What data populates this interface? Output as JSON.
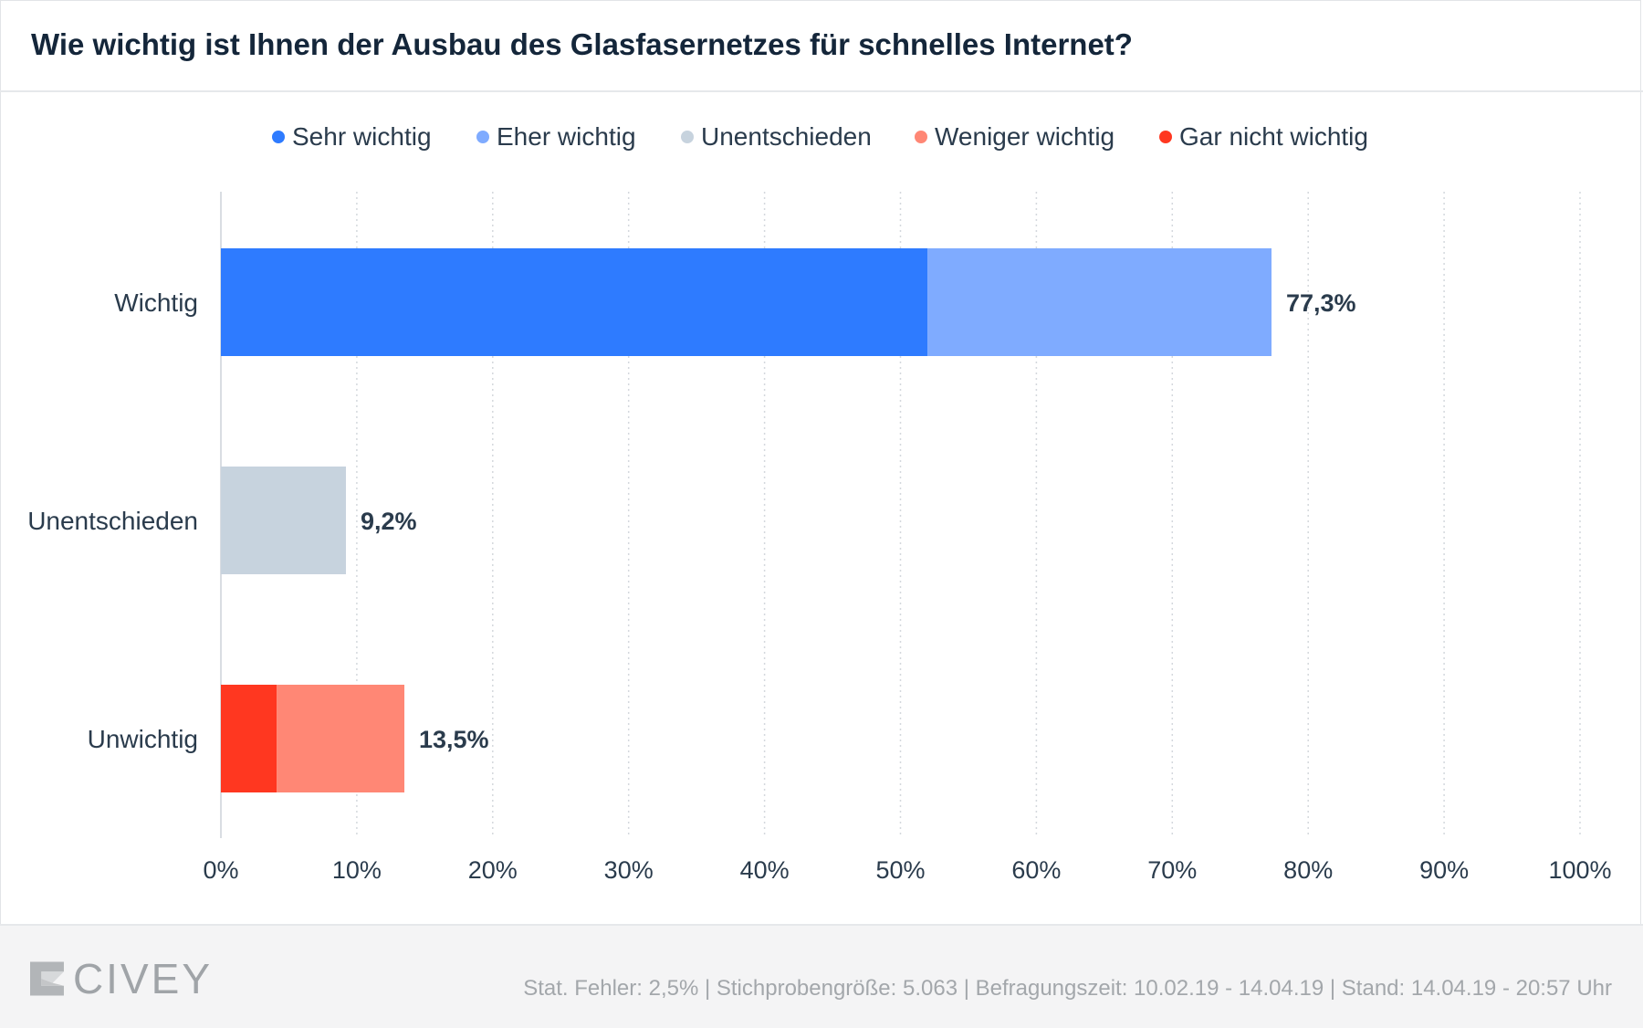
{
  "title": "Wie wichtig ist Ihnen der Ausbau des Glasfasernetzes für schnelles Internet?",
  "legend": [
    {
      "label": "Sehr wichtig",
      "color": "#2e7bff"
    },
    {
      "label": "Eher wichtig",
      "color": "#7fabff"
    },
    {
      "label": "Unentschieden",
      "color": "#c7d3de"
    },
    {
      "label": "Weniger wichtig",
      "color": "#ff8775"
    },
    {
      "label": "Gar nicht wichtig",
      "color": "#ff3720"
    }
  ],
  "chart_data": {
    "type": "bar",
    "orientation": "horizontal",
    "stacked": true,
    "categories": [
      "Wichtig",
      "Unentschieden",
      "Unwichtig"
    ],
    "series": [
      {
        "name": "Sehr wichtig",
        "color": "#2e7bff",
        "values": [
          52.0,
          0,
          0
        ]
      },
      {
        "name": "Eher wichtig",
        "color": "#7fabff",
        "values": [
          25.3,
          0,
          0
        ]
      },
      {
        "name": "Unentschieden",
        "color": "#c7d3de",
        "values": [
          0,
          9.2,
          0
        ]
      },
      {
        "name": "Weniger wichtig",
        "color": "#ff8775",
        "values": [
          0,
          0,
          9.4
        ]
      },
      {
        "name": "Gar nicht wichtig",
        "color": "#ff3720",
        "values": [
          0,
          0,
          4.1
        ]
      }
    ],
    "stack_order": [
      "Gar nicht wichtig",
      "Sehr wichtig",
      "Eher wichtig",
      "Unentschieden",
      "Weniger wichtig"
    ],
    "totals": [
      "77,3%",
      "9,2%",
      "13,5%"
    ],
    "xlim": [
      0,
      100
    ],
    "xticks": [
      "0%",
      "10%",
      "20%",
      "30%",
      "40%",
      "50%",
      "60%",
      "70%",
      "80%",
      "90%",
      "100%"
    ],
    "grid": "vertical-dotted",
    "legend_position": "top-center"
  },
  "footer": {
    "brand": "CIVEY",
    "meta": "Stat. Fehler: 2,5% | Stichprobengröße: 5.063 | Befragungszeit: 10.02.19 - 14.04.19 | Stand: 14.04.19 - 20:57 Uhr"
  }
}
